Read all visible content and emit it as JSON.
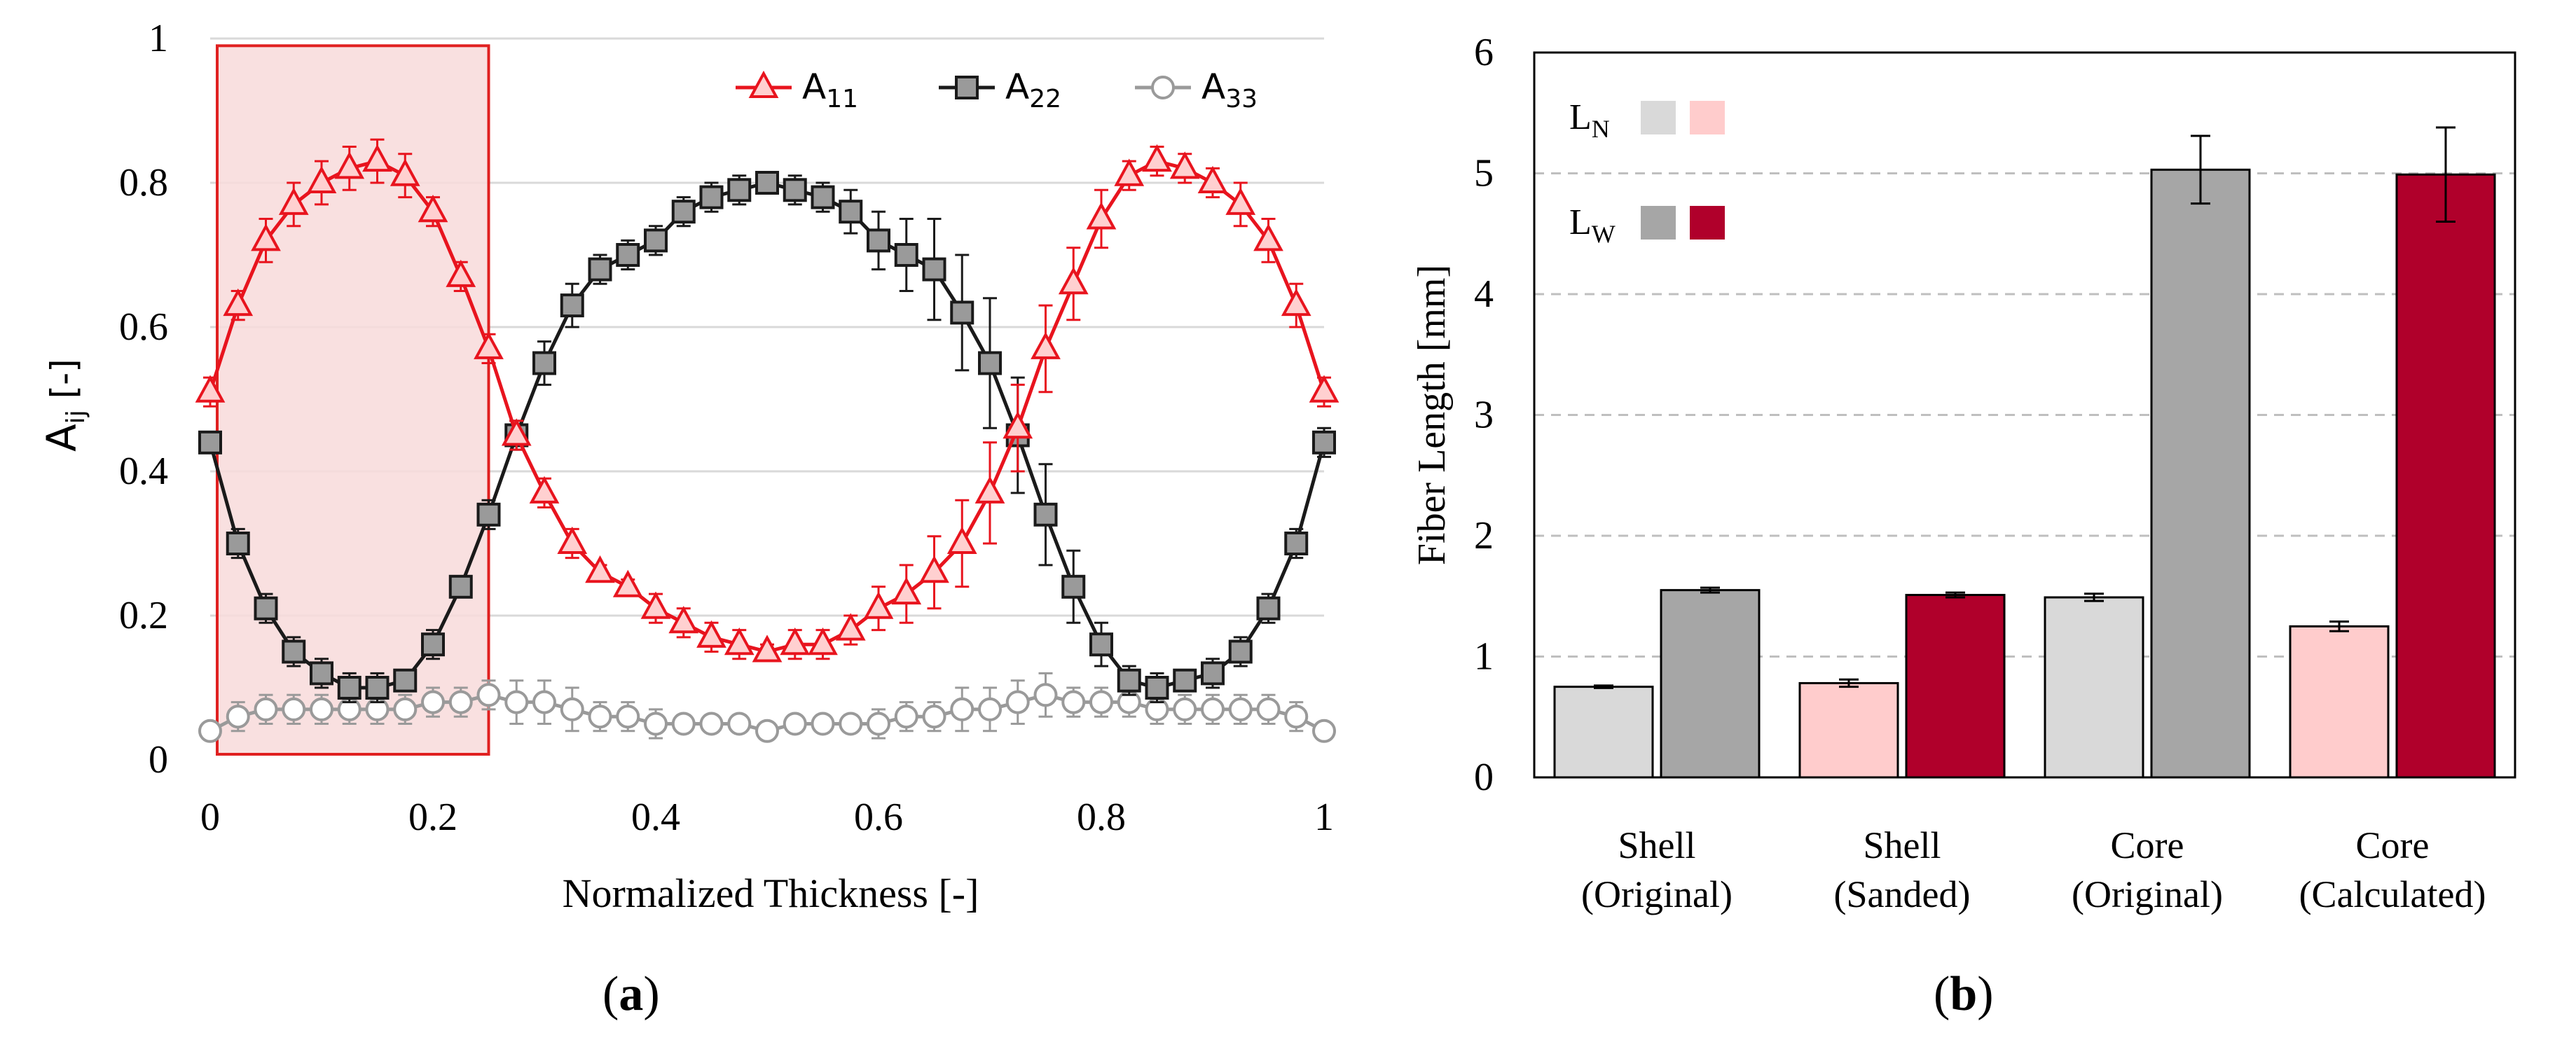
{
  "chart_data": [
    {
      "panel": "(a)",
      "type": "line",
      "xlabel": "Normalized Thickness [-]",
      "ylabel": {
        "main": "A",
        "sub": "ij",
        "unit": " [-]"
      },
      "xlim": [
        0,
        1
      ],
      "ylim": [
        0,
        1
      ],
      "xticks": [
        0,
        0.2,
        0.4,
        0.6,
        0.8,
        1
      ],
      "xtick_labels": [
        "0",
        "0.2",
        "0.4",
        "0.6",
        "0.8",
        "1"
      ],
      "yticks": [
        0,
        0.2,
        0.4,
        0.6,
        0.8,
        1
      ],
      "ytick_labels": [
        "0",
        "0.2",
        "0.4",
        "0.6",
        "0.8",
        "1"
      ],
      "grid": "horizontal",
      "highlight_region": {
        "x": [
          0,
          0.25
        ],
        "y": [
          0,
          0.99
        ],
        "color": "#f8dada",
        "edge": "#e02020"
      },
      "legend_position": "top-right",
      "x": [
        0,
        0.025,
        0.05,
        0.075,
        0.1,
        0.125,
        0.15,
        0.175,
        0.2,
        0.225,
        0.25,
        0.275,
        0.3,
        0.325,
        0.35,
        0.375,
        0.4,
        0.425,
        0.45,
        0.475,
        0.5,
        0.525,
        0.55,
        0.575,
        0.6,
        0.625,
        0.65,
        0.675,
        0.7,
        0.725,
        0.75,
        0.775,
        0.8,
        0.825,
        0.85,
        0.875,
        0.9,
        0.925,
        0.95,
        0.975,
        1
      ],
      "series": [
        {
          "name": "A",
          "sub": "11",
          "marker": "triangle",
          "color": "#e8141e",
          "fill": "#ffd0d0",
          "values": [
            0.51,
            0.63,
            0.72,
            0.77,
            0.8,
            0.82,
            0.83,
            0.81,
            0.76,
            0.67,
            0.57,
            0.45,
            0.37,
            0.3,
            0.26,
            0.24,
            0.21,
            0.19,
            0.17,
            0.16,
            0.15,
            0.16,
            0.16,
            0.18,
            0.21,
            0.23,
            0.26,
            0.3,
            0.37,
            0.46,
            0.57,
            0.66,
            0.75,
            0.81,
            0.83,
            0.82,
            0.8,
            0.77,
            0.72,
            0.63,
            0.51
          ],
          "errors": [
            0.02,
            0.02,
            0.03,
            0.03,
            0.03,
            0.03,
            0.03,
            0.03,
            0.02,
            0.02,
            0.02,
            0.02,
            0.02,
            0.02,
            0.01,
            0.01,
            0.02,
            0.02,
            0.02,
            0.02,
            0.01,
            0.02,
            0.02,
            0.02,
            0.03,
            0.04,
            0.05,
            0.06,
            0.07,
            0.06,
            0.06,
            0.05,
            0.04,
            0.02,
            0.02,
            0.02,
            0.02,
            0.03,
            0.03,
            0.03,
            0.02
          ]
        },
        {
          "name": "A",
          "sub": "22",
          "marker": "square",
          "color": "#1a1a1a",
          "fill": "#9a9a9a",
          "values": [
            0.44,
            0.3,
            0.21,
            0.15,
            0.12,
            0.1,
            0.1,
            0.11,
            0.16,
            0.24,
            0.34,
            0.45,
            0.55,
            0.63,
            0.68,
            0.7,
            0.72,
            0.76,
            0.78,
            0.79,
            0.8,
            0.79,
            0.78,
            0.76,
            0.72,
            0.7,
            0.68,
            0.62,
            0.55,
            0.45,
            0.34,
            0.24,
            0.16,
            0.11,
            0.1,
            0.11,
            0.12,
            0.15,
            0.21,
            0.3,
            0.44
          ],
          "errors": [
            0.01,
            0.02,
            0.02,
            0.02,
            0.02,
            0.02,
            0.02,
            0.01,
            0.02,
            0.01,
            0.02,
            0.02,
            0.03,
            0.03,
            0.02,
            0.02,
            0.02,
            0.02,
            0.02,
            0.02,
            0.01,
            0.02,
            0.02,
            0.03,
            0.04,
            0.05,
            0.07,
            0.08,
            0.09,
            0.08,
            0.07,
            0.05,
            0.03,
            0.02,
            0.02,
            0.01,
            0.02,
            0.02,
            0.02,
            0.02,
            0.02
          ]
        },
        {
          "name": "A",
          "sub": "33",
          "marker": "circle",
          "color": "#9a9a9a",
          "fill": "#ffffff",
          "values": [
            0.04,
            0.06,
            0.07,
            0.07,
            0.07,
            0.07,
            0.07,
            0.07,
            0.08,
            0.08,
            0.09,
            0.08,
            0.08,
            0.07,
            0.06,
            0.06,
            0.05,
            0.05,
            0.05,
            0.05,
            0.04,
            0.05,
            0.05,
            0.05,
            0.05,
            0.06,
            0.06,
            0.07,
            0.07,
            0.08,
            0.09,
            0.08,
            0.08,
            0.08,
            0.07,
            0.07,
            0.07,
            0.07,
            0.07,
            0.06,
            0.04
          ],
          "errors": [
            0.01,
            0.02,
            0.02,
            0.02,
            0.02,
            0.02,
            0.02,
            0.02,
            0.02,
            0.02,
            0.02,
            0.03,
            0.03,
            0.03,
            0.02,
            0.02,
            0.02,
            0.01,
            0.01,
            0.01,
            0.01,
            0.01,
            0.01,
            0.01,
            0.02,
            0.02,
            0.02,
            0.03,
            0.03,
            0.03,
            0.03,
            0.02,
            0.02,
            0.02,
            0.02,
            0.02,
            0.02,
            0.02,
            0.02,
            0.02,
            0.01
          ]
        }
      ]
    },
    {
      "panel": "(b)",
      "type": "bar",
      "ylabel": "Fiber Length [mm]",
      "ylim": [
        0,
        6
      ],
      "yticks": [
        0,
        1,
        2,
        3,
        4,
        5,
        6
      ],
      "ytick_labels": [
        "0",
        "1",
        "2",
        "3",
        "4",
        "5",
        "6"
      ],
      "grid": "horizontal-dashed",
      "legend_position": "top-left",
      "legend": [
        {
          "label": "L",
          "sub": "N",
          "colors": [
            "#d9d9d9",
            "#ffcccc"
          ]
        },
        {
          "label": "L",
          "sub": "W",
          "colors": [
            "#a6a6a6",
            "#b0002b"
          ]
        }
      ],
      "categories": [
        {
          "line1": "Shell",
          "line2": "(Original)"
        },
        {
          "line1": "Shell",
          "line2": "(Sanded)"
        },
        {
          "line1": "Core",
          "line2": "(Original)"
        },
        {
          "line1": "Core",
          "line2": "(Calculated)"
        }
      ],
      "series": [
        {
          "name": "L_N",
          "values": [
            0.75,
            0.78,
            1.49,
            1.25
          ],
          "errors": [
            0.01,
            0.03,
            0.03,
            0.04
          ],
          "colors": [
            "#d9d9d9",
            "#ffcccc",
            "#d9d9d9",
            "#ffcccc"
          ]
        },
        {
          "name": "L_W",
          "values": [
            1.55,
            1.51,
            5.03,
            4.99
          ],
          "errors": [
            0.02,
            0.02,
            0.28,
            0.39
          ],
          "colors": [
            "#a6a6a6",
            "#b0002b",
            "#a6a6a6",
            "#b0002b"
          ]
        }
      ]
    }
  ],
  "labels": {
    "a": "a",
    "b": "b"
  }
}
